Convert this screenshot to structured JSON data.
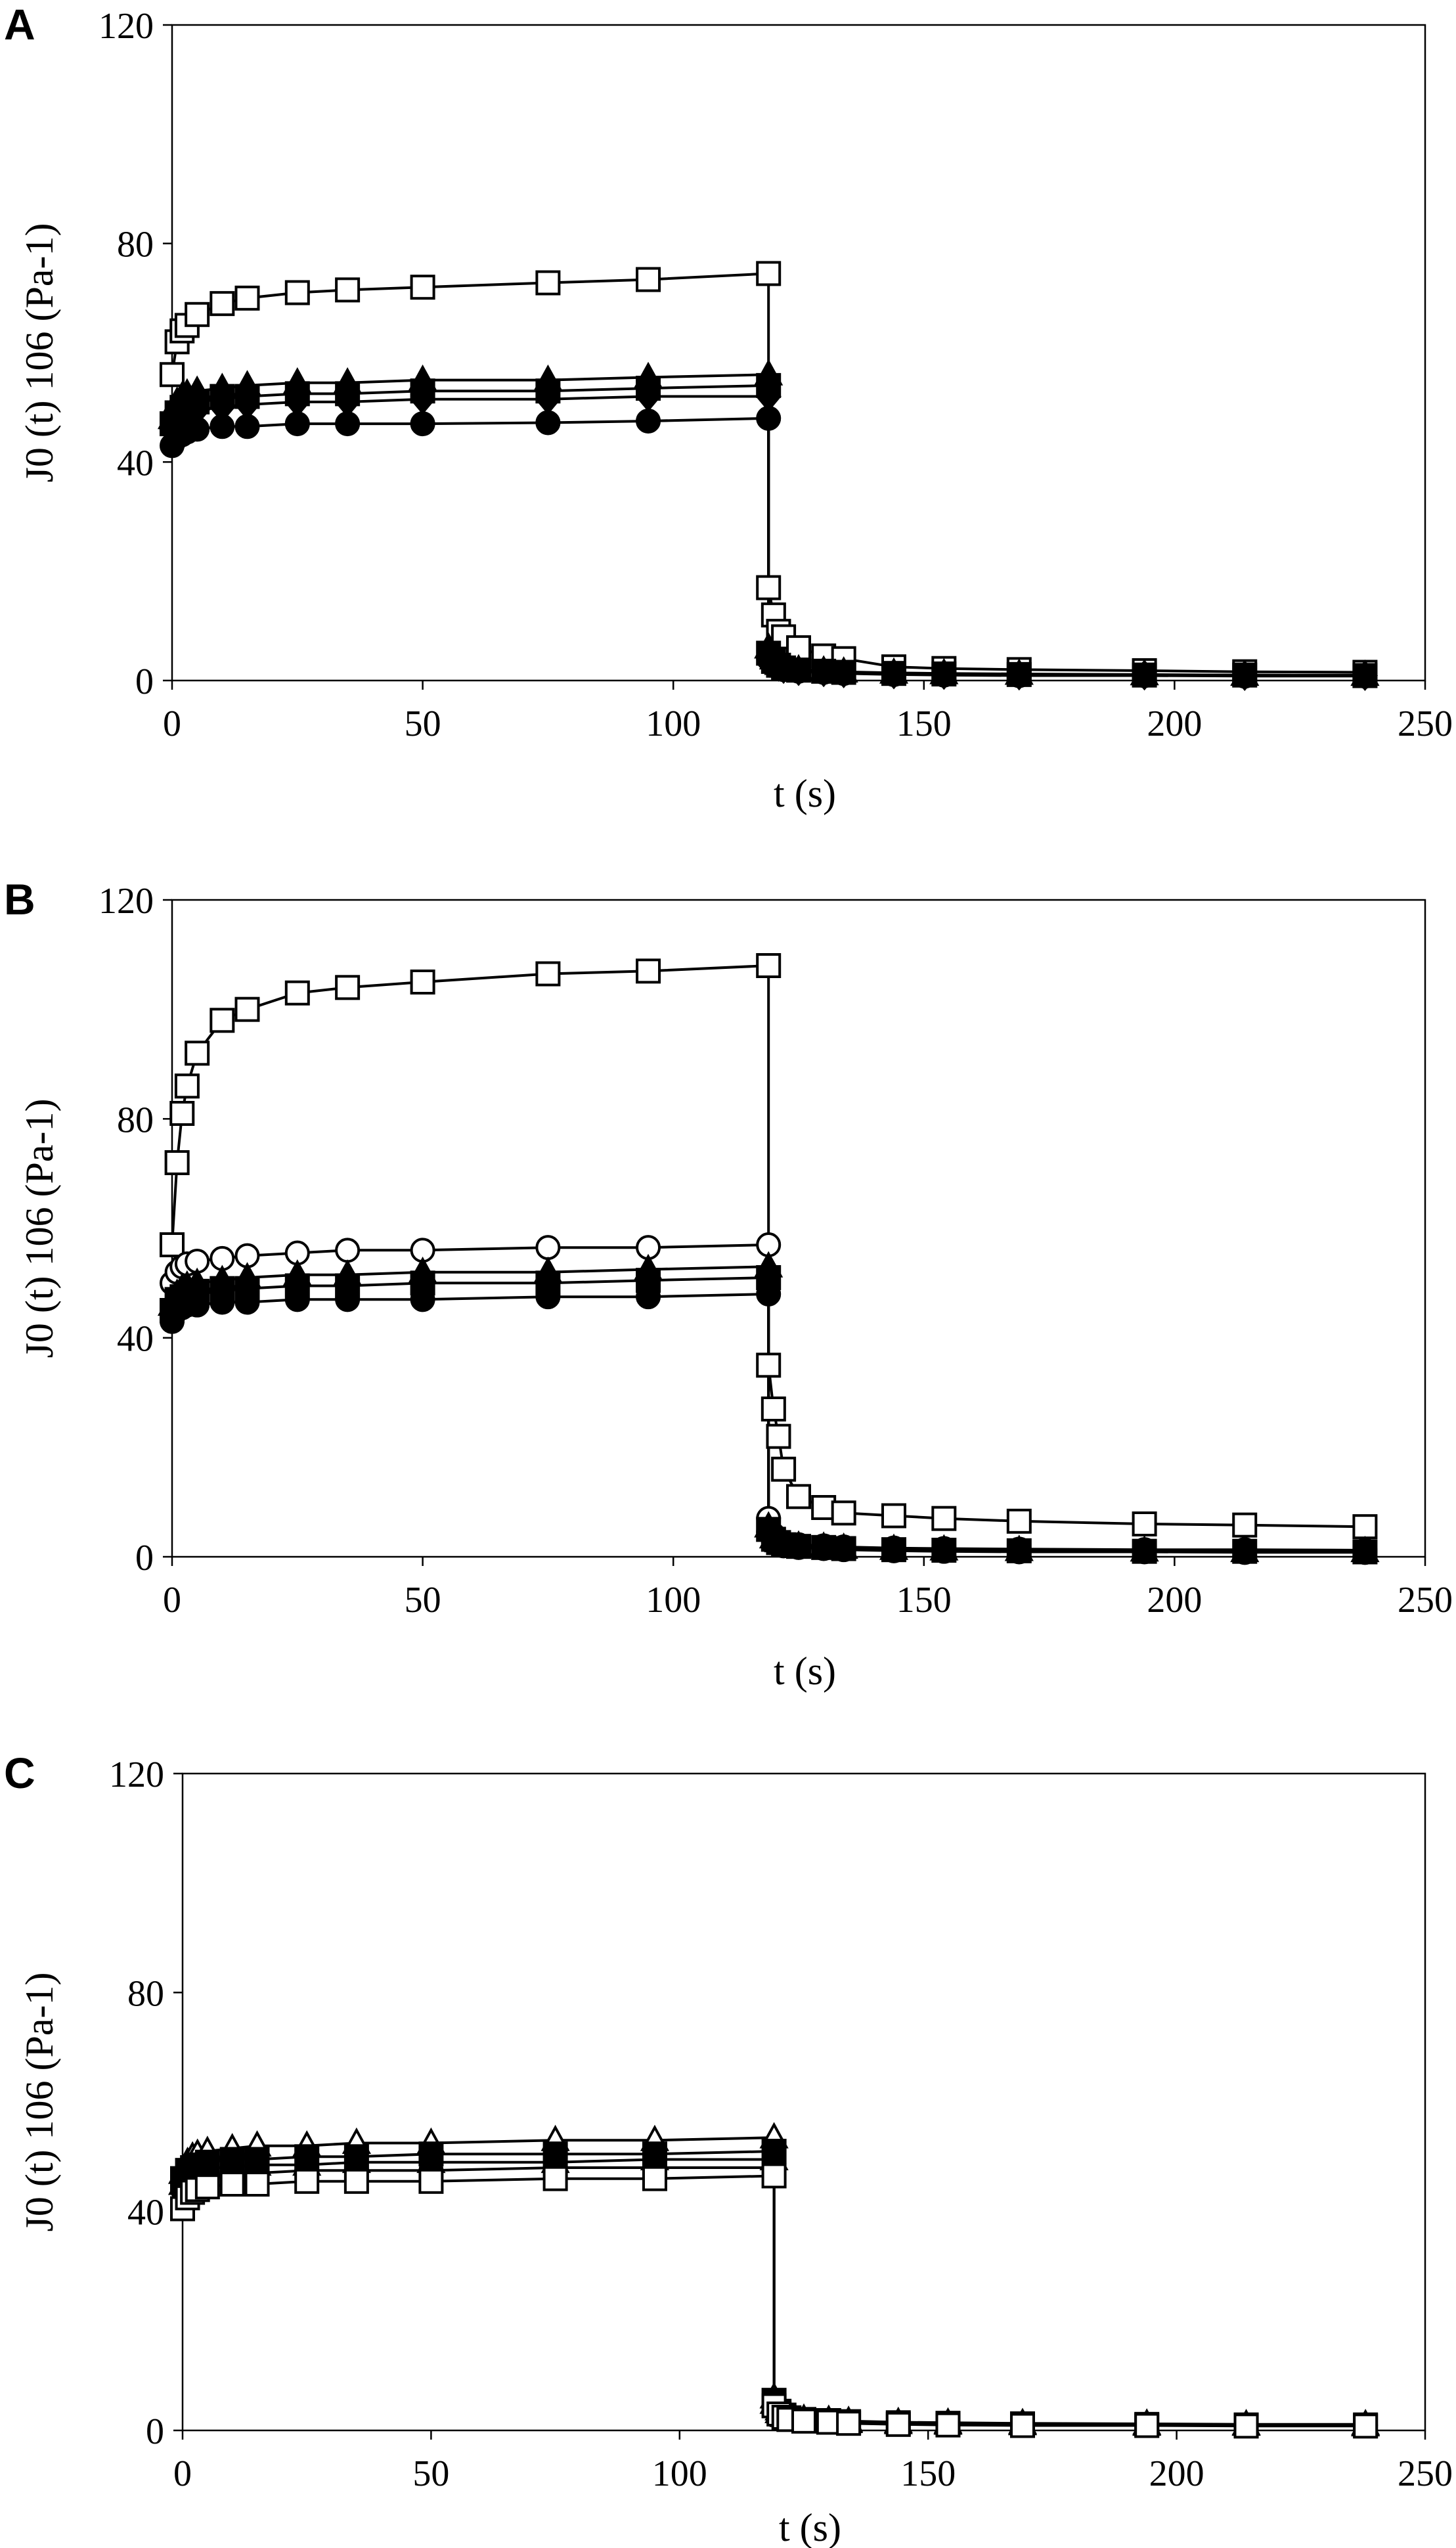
{
  "chart_data": [
    {
      "type": "scatter",
      "panel_label": "A",
      "xlabel": "t (s)",
      "ylabel": "J0 (t) 106 (Pa-1)",
      "xlim": [
        0,
        250
      ],
      "ylim": [
        0,
        120
      ],
      "xticks": [
        0,
        50,
        100,
        150,
        200,
        250
      ],
      "yticks": [
        0,
        40,
        80,
        120
      ],
      "grid": false,
      "creep_x": [
        0,
        1,
        2,
        3,
        5,
        10,
        15,
        25,
        35,
        50,
        75,
        95,
        119
      ],
      "recovery_x": [
        119,
        120,
        121,
        122,
        125,
        130,
        134,
        144,
        154,
        169,
        194,
        214,
        238
      ],
      "series": [
        {
          "marker": "square-open",
          "creep": [
            56,
            62,
            64,
            65,
            67,
            69,
            70,
            71,
            71.5,
            72,
            72.8,
            73.4,
            74.5
          ],
          "recovery": [
            17,
            12,
            9,
            8,
            6,
            4.5,
            4,
            2.5,
            2.2,
            2,
            1.8,
            1.6,
            1.5
          ]
        },
        {
          "marker": "triangle-filled",
          "creep": [
            48,
            51,
            52,
            52.5,
            53,
            53.5,
            54,
            54.5,
            54.5,
            55,
            55,
            55.5,
            56
          ],
          "recovery": [
            6,
            4,
            3,
            2.5,
            2,
            1.8,
            1.6,
            1.4,
            1.3,
            1.2,
            1.1,
            1,
            1
          ]
        },
        {
          "marker": "square-filled",
          "creep": [
            47,
            49,
            50,
            50.5,
            51,
            52,
            52,
            52.5,
            52.5,
            53,
            53,
            53.5,
            54
          ],
          "recovery": [
            5,
            3.5,
            2.8,
            2.3,
            1.9,
            1.7,
            1.5,
            1.3,
            1.2,
            1.1,
            1,
            1,
            0.9
          ]
        },
        {
          "marker": "diamond-filled",
          "creep": [
            46,
            48,
            48.5,
            49,
            49.5,
            50,
            50.5,
            51,
            51,
            51.5,
            51.5,
            52,
            52
          ],
          "recovery": [
            4.5,
            3.2,
            2.6,
            2.2,
            1.8,
            1.6,
            1.4,
            1.2,
            1.1,
            1,
            1,
            0.9,
            0.9
          ]
        },
        {
          "marker": "circle-filled",
          "creep": [
            43,
            44.5,
            45,
            45.5,
            46,
            46.5,
            46.5,
            47,
            47,
            47,
            47.2,
            47.5,
            48
          ],
          "recovery": [
            4,
            3,
            2.4,
            2,
            1.7,
            1.5,
            1.3,
            1.1,
            1,
            0.9,
            0.9,
            0.8,
            0.8
          ]
        }
      ]
    },
    {
      "type": "scatter",
      "panel_label": "B",
      "xlabel": "t (s)",
      "ylabel": "J0 (t) 106 (Pa-1)",
      "xlim": [
        0,
        250
      ],
      "ylim": [
        0,
        120
      ],
      "xticks": [
        0,
        50,
        100,
        150,
        200,
        250
      ],
      "yticks": [
        0,
        40,
        80,
        120
      ],
      "grid": false,
      "creep_x": [
        0,
        1,
        2,
        3,
        5,
        10,
        15,
        25,
        35,
        50,
        75,
        95,
        119
      ],
      "recovery_x": [
        119,
        120,
        121,
        122,
        125,
        130,
        134,
        144,
        154,
        169,
        194,
        214,
        238
      ],
      "series": [
        {
          "marker": "square-open",
          "creep": [
            57,
            72,
            81,
            86,
            92,
            98,
            100,
            103,
            104,
            105,
            106.5,
            107,
            108
          ],
          "recovery": [
            35,
            27,
            22,
            16,
            11,
            9,
            8,
            7.5,
            7,
            6.5,
            6,
            5.8,
            5.5
          ]
        },
        {
          "marker": "circle-open",
          "creep": [
            50,
            52,
            53,
            53.5,
            54,
            54.5,
            55,
            55.5,
            56,
            56,
            56.5,
            56.5,
            57
          ],
          "recovery": [
            7,
            4,
            3,
            2.5,
            2.2,
            2,
            1.8,
            1.6,
            1.5,
            1.4,
            1.3,
            1.3,
            1.2
          ]
        },
        {
          "marker": "triangle-filled",
          "creep": [
            46,
            48,
            49,
            49.5,
            50,
            50.5,
            51,
            51.5,
            51.5,
            52,
            52,
            52.5,
            53
          ],
          "recovery": [
            5.5,
            3.5,
            2.8,
            2.3,
            2,
            1.8,
            1.6,
            1.4,
            1.3,
            1.2,
            1.1,
            1,
            1
          ]
        },
        {
          "marker": "square-filled",
          "creep": [
            45,
            47,
            47.5,
            48,
            48.5,
            49,
            49,
            49.5,
            49.5,
            50,
            50,
            50.5,
            51
          ],
          "recovery": [
            5,
            3.2,
            2.6,
            2.2,
            1.9,
            1.7,
            1.5,
            1.3,
            1.2,
            1.1,
            1,
            1,
            0.9
          ]
        },
        {
          "marker": "circle-filled",
          "creep": [
            43,
            45,
            45.5,
            46,
            46,
            46.5,
            46.5,
            47,
            47,
            47,
            47.5,
            47.5,
            48
          ],
          "recovery": [
            4.5,
            3,
            2.4,
            2,
            1.7,
            1.5,
            1.3,
            1.1,
            1,
            0.9,
            0.9,
            0.8,
            0.8
          ]
        }
      ]
    },
    {
      "type": "scatter",
      "panel_label": "C",
      "xlabel": "t (s)",
      "ylabel": "J0 (t) 106 (Pa-1)",
      "xlim": [
        0,
        250
      ],
      "ylim": [
        0,
        120
      ],
      "xticks": [
        0,
        50,
        100,
        150,
        200,
        250
      ],
      "yticks": [
        0,
        40,
        80,
        120
      ],
      "grid": false,
      "creep_x": [
        0,
        1,
        2,
        3,
        5,
        10,
        15,
        25,
        35,
        50,
        75,
        95,
        119
      ],
      "recovery_x": [
        119,
        120,
        121,
        122,
        125,
        130,
        134,
        144,
        154,
        169,
        194,
        214,
        238
      ],
      "series": [
        {
          "marker": "triangle-open",
          "creep": [
            47,
            49,
            50,
            50.5,
            51,
            51.5,
            52,
            52,
            52.5,
            52.5,
            53,
            53,
            53.5
          ],
          "recovery": [
            6,
            3.8,
            3,
            2.5,
            2.1,
            1.9,
            1.7,
            1.5,
            1.4,
            1.3,
            1.2,
            1.1,
            1.1
          ]
        },
        {
          "marker": "square-filled",
          "creep": [
            46,
            47.5,
            48,
            48.5,
            49,
            49.5,
            49.5,
            50,
            50,
            50.5,
            50.5,
            50.5,
            51
          ],
          "recovery": [
            5.5,
            3.5,
            2.8,
            2.3,
            2,
            1.8,
            1.6,
            1.4,
            1.3,
            1.2,
            1.1,
            1,
            1
          ]
        },
        {
          "marker": "triangle-filled",
          "creep": [
            45,
            46.5,
            47,
            47.5,
            48,
            48,
            48.5,
            48.5,
            49,
            49,
            49,
            49.5,
            49.5
          ],
          "recovery": [
            5,
            3.3,
            2.6,
            2.2,
            1.9,
            1.7,
            1.5,
            1.3,
            1.2,
            1.1,
            1,
            1,
            0.9
          ]
        },
        {
          "marker": "circle-filled",
          "creep": [
            44,
            45.5,
            46,
            46,
            46.5,
            47,
            47,
            47.5,
            47.5,
            47.5,
            48,
            48,
            48
          ],
          "recovery": [
            4.8,
            3.1,
            2.5,
            2.1,
            1.8,
            1.6,
            1.4,
            1.2,
            1.1,
            1,
            1,
            0.9,
            0.9
          ]
        },
        {
          "marker": "square-open",
          "creep": [
            40.5,
            42.5,
            43.5,
            44,
            44.5,
            45,
            45,
            45.5,
            45.5,
            45.5,
            46,
            46,
            46.5
          ],
          "recovery": [
            4.5,
            3,
            2.4,
            2,
            1.7,
            1.5,
            1.3,
            1.1,
            1,
            0.9,
            0.9,
            0.8,
            0.8
          ]
        }
      ]
    }
  ]
}
